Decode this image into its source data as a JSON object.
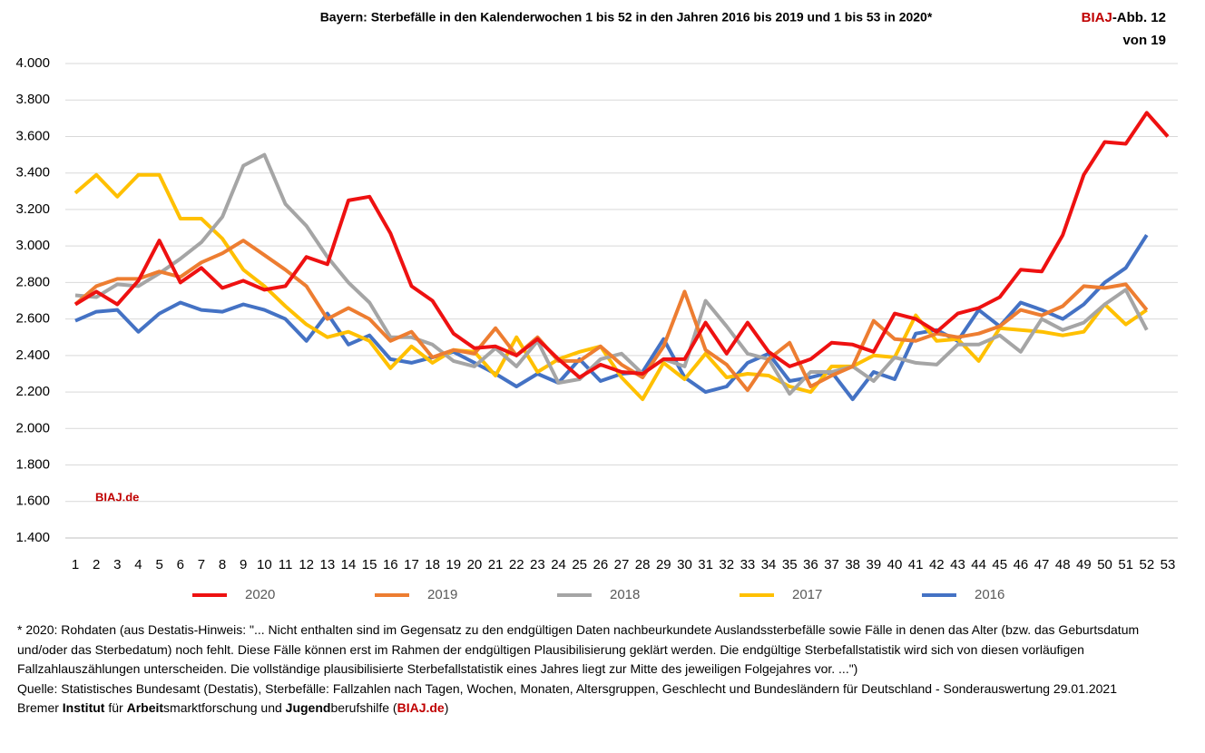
{
  "chart_data": {
    "type": "line",
    "title": "Bayern: Sterbefälle in den Kalenderwochen 1 bis 52 in den Jahren 2016 bis 2019 und 1 bis 53 in 2020*",
    "badge": [
      "BIAJ",
      "-Abb. 12",
      "von 19"
    ],
    "watermark": "BIAJ.de",
    "categories": [
      1,
      2,
      3,
      4,
      5,
      6,
      7,
      8,
      9,
      10,
      11,
      12,
      13,
      14,
      15,
      16,
      17,
      18,
      19,
      20,
      21,
      22,
      23,
      24,
      25,
      26,
      27,
      28,
      29,
      30,
      31,
      32,
      33,
      34,
      35,
      36,
      37,
      38,
      39,
      40,
      41,
      42,
      43,
      44,
      45,
      46,
      47,
      48,
      49,
      50,
      51,
      52,
      53
    ],
    "ylim": [
      1400,
      4000
    ],
    "yticks": [
      {
        "value": 1400,
        "label": "1.400"
      },
      {
        "value": 1600,
        "label": "1.600"
      },
      {
        "value": 1800,
        "label": "1.800"
      },
      {
        "value": 2000,
        "label": "2.000"
      },
      {
        "value": 2200,
        "label": "2.200"
      },
      {
        "value": 2400,
        "label": "2.400"
      },
      {
        "value": 2600,
        "label": "2.600"
      },
      {
        "value": 2800,
        "label": "2.800"
      },
      {
        "value": 3000,
        "label": "3.000"
      },
      {
        "value": 3200,
        "label": "3.200"
      },
      {
        "value": 3400,
        "label": "3.400"
      },
      {
        "value": 3600,
        "label": "3.600"
      },
      {
        "value": 3800,
        "label": "3.800"
      },
      {
        "value": 4000,
        "label": "4.000"
      }
    ],
    "grid": true,
    "legend": "bottom",
    "series": [
      {
        "name": "2020",
        "color": "#ee1111",
        "values": [
          2680,
          2750,
          2680,
          2810,
          3030,
          2800,
          2880,
          2770,
          2810,
          2760,
          2780,
          2940,
          2900,
          3250,
          3270,
          3070,
          2780,
          2700,
          2520,
          2440,
          2450,
          2400,
          2490,
          2380,
          2280,
          2350,
          2310,
          2300,
          2380,
          2380,
          2580,
          2410,
          2580,
          2420,
          2340,
          2380,
          2470,
          2460,
          2420,
          2630,
          2600,
          2530,
          2630,
          2660,
          2720,
          2870,
          2860,
          3060,
          3390,
          3570,
          3560,
          3730,
          3600
        ]
      },
      {
        "name": "2019",
        "color": "#ed7d31",
        "values": [
          2680,
          2780,
          2820,
          2820,
          2860,
          2830,
          2910,
          2960,
          3030,
          2950,
          2870,
          2780,
          2600,
          2660,
          2600,
          2480,
          2530,
          2390,
          2430,
          2410,
          2550,
          2400,
          2500,
          2370,
          2370,
          2450,
          2350,
          2280,
          2450,
          2750,
          2430,
          2350,
          2210,
          2380,
          2470,
          2230,
          2290,
          2340,
          2590,
          2490,
          2480,
          2520,
          2500,
          2520,
          2560,
          2650,
          2620,
          2670,
          2780,
          2770,
          2790,
          2650,
          null
        ]
      },
      {
        "name": "2018",
        "color": "#a5a5a5",
        "values": [
          2730,
          2720,
          2790,
          2780,
          2850,
          2930,
          3020,
          3160,
          3440,
          3500,
          3230,
          3110,
          2940,
          2800,
          2690,
          2500,
          2500,
          2460,
          2370,
          2340,
          2440,
          2340,
          2480,
          2250,
          2270,
          2380,
          2410,
          2300,
          2380,
          2340,
          2700,
          2560,
          2410,
          2380,
          2190,
          2310,
          2310,
          2340,
          2260,
          2390,
          2360,
          2350,
          2460,
          2460,
          2510,
          2420,
          2600,
          2540,
          2580,
          2680,
          2760,
          2540,
          null
        ]
      },
      {
        "name": "2017",
        "color": "#ffc000",
        "values": [
          3290,
          3390,
          3270,
          3390,
          3390,
          3150,
          3150,
          3040,
          2870,
          2780,
          2670,
          2570,
          2500,
          2530,
          2480,
          2330,
          2450,
          2360,
          2430,
          2420,
          2290,
          2500,
          2310,
          2380,
          2420,
          2450,
          2280,
          2160,
          2360,
          2270,
          2410,
          2280,
          2300,
          2290,
          2230,
          2200,
          2340,
          2340,
          2400,
          2390,
          2620,
          2480,
          2490,
          2370,
          2550,
          2540,
          2530,
          2510,
          2530,
          2680,
          2570,
          2650,
          null
        ]
      },
      {
        "name": "2016",
        "color": "#4472c4",
        "values": [
          2590,
          2640,
          2650,
          2530,
          2630,
          2690,
          2650,
          2640,
          2680,
          2650,
          2600,
          2480,
          2630,
          2460,
          2510,
          2380,
          2360,
          2390,
          2420,
          2360,
          2300,
          2230,
          2300,
          2250,
          2380,
          2260,
          2300,
          2310,
          2490,
          2280,
          2200,
          2230,
          2360,
          2410,
          2260,
          2280,
          2310,
          2160,
          2310,
          2270,
          2520,
          2540,
          2480,
          2650,
          2560,
          2690,
          2650,
          2600,
          2680,
          2800,
          2880,
          3060,
          null
        ]
      }
    ],
    "footnote": "* 2020: Rohdaten (aus Destatis-Hinweis: \"... Nicht enthalten sind im Gegensatz zu den endgültigen Daten nachbeurkundete Auslandssterbefälle sowie Fälle in denen das Alter (bzw. das Geburtsdatum und/oder das Sterbedatum) noch fehlt. Diese Fälle können erst im Rahmen der endgültigen Plausibilisierung geklärt werden. Die endgültige Sterbefallstatistik wird sich von diesen vorläufigen Fallzahlauszählungen unterscheiden. Die vollständige plausibilisierte Sterbefallstatistik eines Jahres liegt zur Mitte des jeweiligen Folgejahres vor. ...\")",
    "source": "Quelle: Statistisches Bundesamt (Destatis), Sterbefälle: Fallzahlen nach Tagen, Wochen, Monaten, Altersgruppen, Geschlecht und Bundesländern für Deutschland - Sonderauswertung 29.01.2021",
    "publisher": [
      "Bremer ",
      "Institut",
      " für ",
      "Arbeit",
      "smarktforschung und ",
      "Jugend",
      "berufshilfe (",
      "BIAJ.de",
      ")"
    ]
  }
}
